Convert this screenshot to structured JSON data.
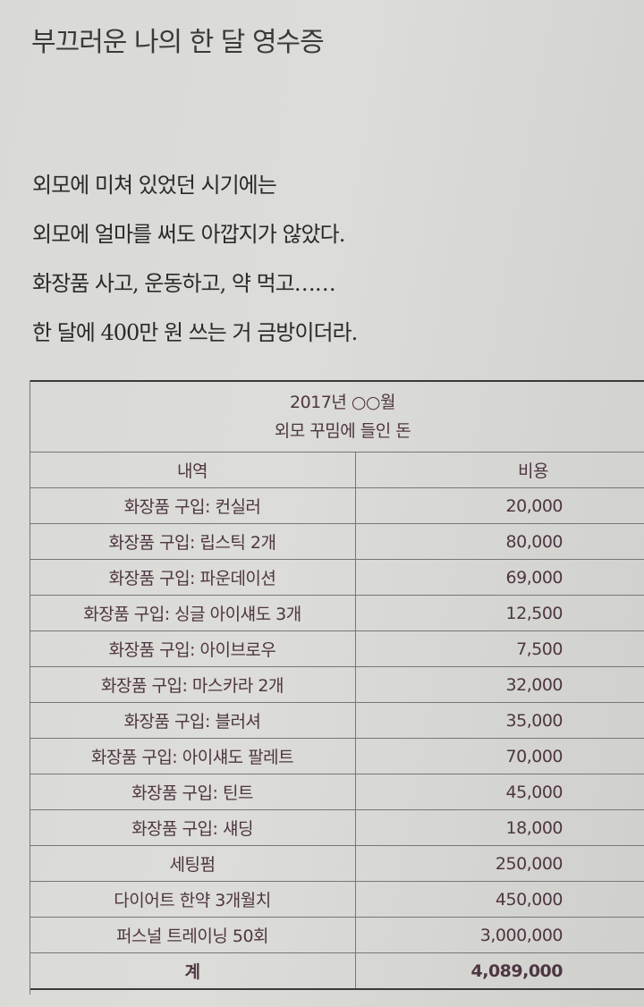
{
  "title": "부끄러운 나의 한 달 영수증",
  "paragraph": [
    "외모에 미쳐 있었던 시기에는",
    "외모에 얼마를 써도 아깝지가 않았다.",
    "화장품 사고, 운동하고, 약 먹고……",
    "한 달에 400만 원 쓰는 거 금방이더라."
  ],
  "table": {
    "caption_line1": "2017년 ○○월",
    "caption_line2": "외모 꾸밈에 들인 돈",
    "headers": [
      "내역",
      "비용"
    ],
    "rows": [
      [
        "화장품 구입: 컨실러",
        "20,000"
      ],
      [
        "화장품 구입: 립스틱 2개",
        "80,000"
      ],
      [
        "화장품 구입: 파운데이션",
        "69,000"
      ],
      [
        "화장품 구입: 싱글 아이섀도 3개",
        "12,500"
      ],
      [
        "화장품 구입: 아이브로우",
        "7,500"
      ],
      [
        "화장품 구입: 마스카라 2개",
        "32,000"
      ],
      [
        "화장품 구입: 블러셔",
        "35,000"
      ],
      [
        "화장품 구입: 아이섀도 팔레트",
        "70,000"
      ],
      [
        "화장품 구입: 틴트",
        "45,000"
      ],
      [
        "화장품 구입: 섀딩",
        "18,000"
      ],
      [
        "세팅펌",
        "250,000"
      ],
      [
        "다이어트 한약 3개월치",
        "450,000"
      ],
      [
        "퍼스널 트레이닝 50회",
        "3,000,000"
      ]
    ],
    "total": [
      "계",
      "4,089,000"
    ]
  }
}
